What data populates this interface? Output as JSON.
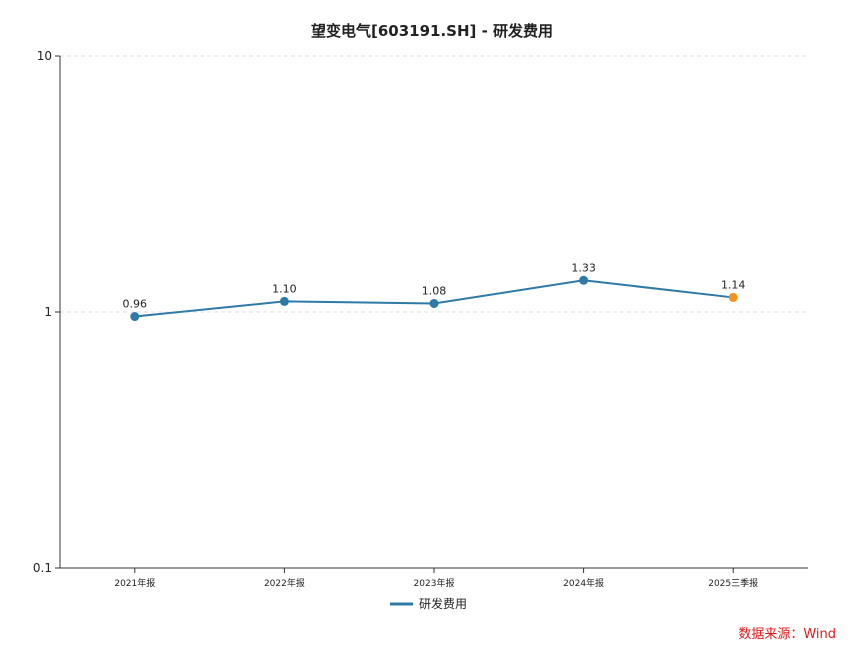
{
  "chart_data": {
    "type": "line",
    "title": "望变电气[603191.SH] - 研发费用",
    "categories": [
      "2021年报",
      "2022年报",
      "2023年报",
      "2024年报",
      "2025三季报"
    ],
    "series": [
      {
        "name": "研发费用",
        "values": [
          0.96,
          1.1,
          1.08,
          1.33,
          1.14
        ],
        "color": "#2e7aa6"
      }
    ],
    "data_labels": [
      "0.96",
      "1.10",
      "1.08",
      "1.33",
      "1.14"
    ],
    "highlight_last_point_color": "#f5921e",
    "y_scale": "log",
    "ylim": [
      0.1,
      10
    ],
    "y_ticks": [
      0.1,
      1,
      10
    ],
    "y_tick_labels": [
      "0.1",
      "1",
      "10"
    ],
    "grid": "horizontal-dashed",
    "legend_position": "bottom-center",
    "source": "数据来源：Wind"
  }
}
